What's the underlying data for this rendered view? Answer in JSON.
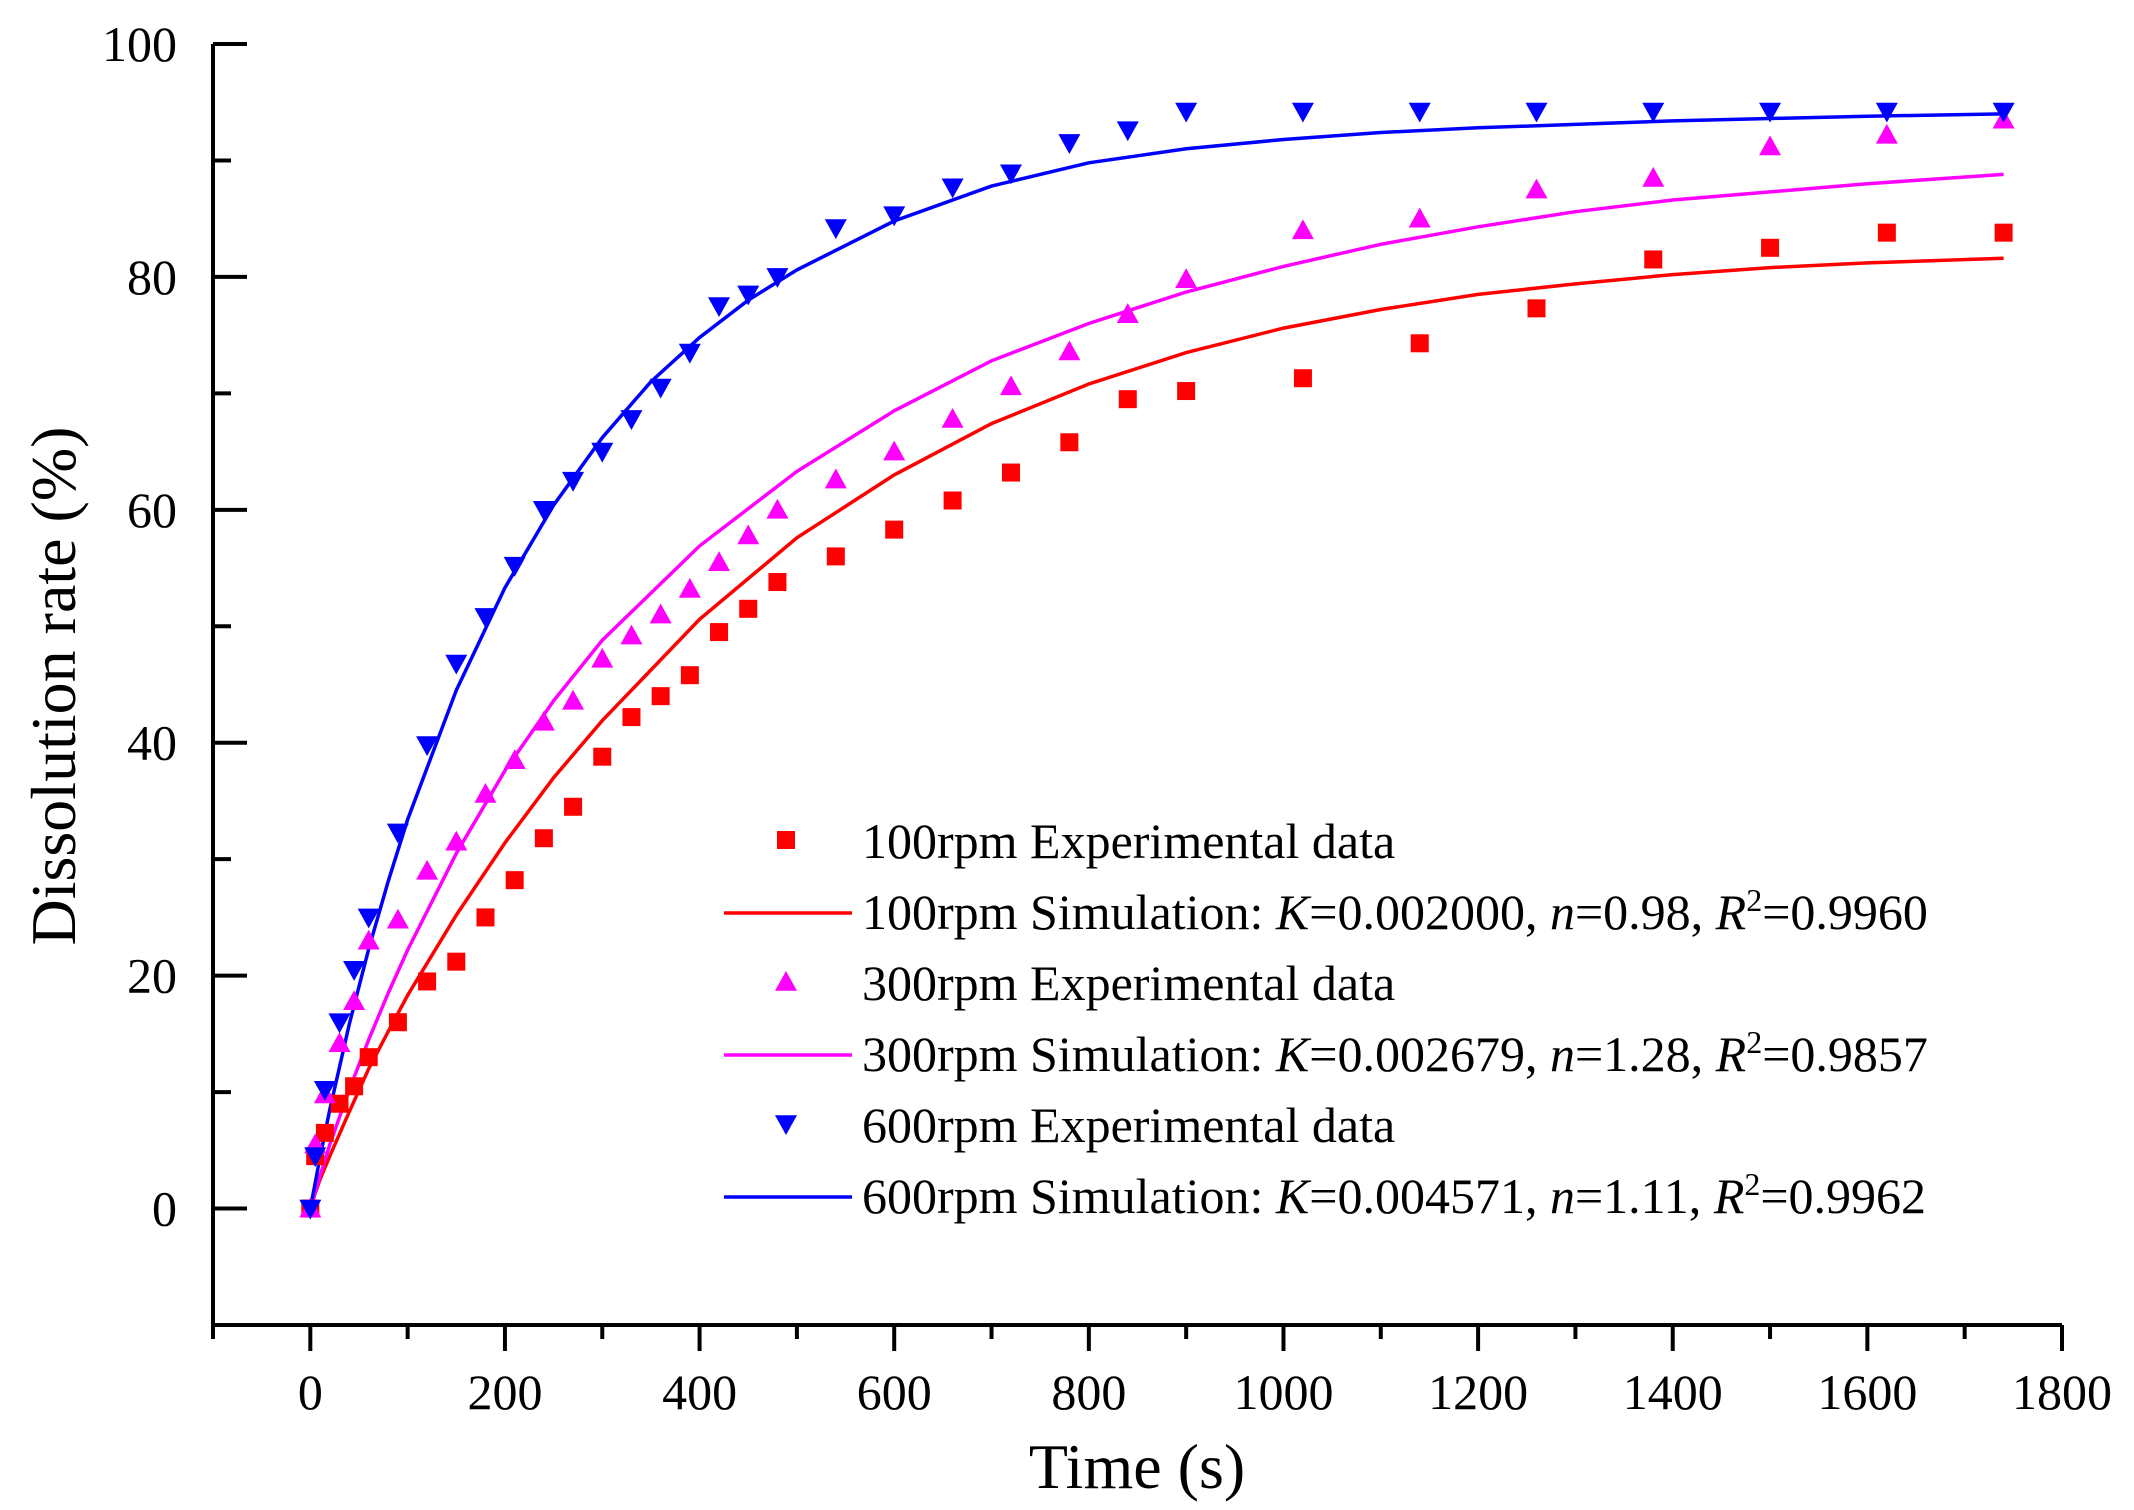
{
  "chart_data": {
    "type": "scatter",
    "xlabel": "Time (s)",
    "ylabel": "Dissolution rate (%)",
    "xlim": [
      -100,
      1800
    ],
    "ylim": [
      -10,
      100
    ],
    "xticks": [
      0,
      200,
      400,
      600,
      800,
      1000,
      1200,
      1400,
      1600,
      1800
    ],
    "yticks": [
      0,
      20,
      40,
      60,
      80,
      100
    ],
    "grid": false,
    "legend_position": "bottom-right",
    "colors": {
      "100rpm": "#ff0000",
      "300rpm": "#ff00ff",
      "600rpm": "#0000ff"
    },
    "series": [
      {
        "name": "100rpm  Experimental data",
        "marker": "square",
        "color": "#ff0000",
        "x": [
          0,
          5,
          15,
          30,
          45,
          60,
          90,
          120,
          150,
          180,
          210,
          240,
          270,
          300,
          330,
          360,
          390,
          420,
          450,
          480,
          540,
          600,
          660,
          720,
          780,
          840,
          900,
          1020,
          1140,
          1260,
          1380,
          1500,
          1620,
          1740
        ],
        "y": [
          0,
          4.5,
          6.5,
          9,
          10.5,
          13,
          16,
          19.5,
          21.2,
          25,
          28.2,
          31.8,
          34.5,
          38.8,
          42.2,
          44,
          45.8,
          49.5,
          51.5,
          53.8,
          56,
          58.3,
          60.8,
          63.2,
          65.8,
          69.5,
          70.2,
          71.3,
          74.3,
          77.3,
          81.5,
          82.5,
          83.8,
          83.8
        ]
      },
      {
        "name": "100rpm Simulation: K=0.002000, n=0.98, R2=0.9960",
        "line": true,
        "color": "#ff0000",
        "x": [
          0,
          5,
          10,
          20,
          40,
          60,
          80,
          100,
          150,
          200,
          250,
          300,
          400,
          500,
          600,
          700,
          800,
          900,
          1000,
          1100,
          1200,
          1300,
          1400,
          1500,
          1600,
          1740
        ],
        "y": [
          0,
          1.3,
          2.5,
          4.5,
          8.3,
          12.0,
          15.2,
          18.3,
          25.2,
          31.4,
          37.0,
          41.9,
          50.6,
          57.6,
          63.0,
          67.4,
          70.8,
          73.5,
          75.6,
          77.2,
          78.5,
          79.4,
          80.2,
          80.8,
          81.2,
          81.6
        ]
      },
      {
        "name": "300rpm  Experimental data",
        "marker": "triangle-up",
        "color": "#ff00ff",
        "x": [
          0,
          5,
          15,
          30,
          45,
          60,
          90,
          120,
          150,
          180,
          210,
          240,
          270,
          300,
          330,
          360,
          390,
          420,
          450,
          480,
          540,
          600,
          660,
          720,
          780,
          840,
          900,
          1020,
          1140,
          1260,
          1380,
          1500,
          1620,
          1740
        ],
        "y": [
          0,
          5.5,
          9.8,
          14.2,
          17.8,
          23,
          24.8,
          29,
          31.5,
          35.6,
          38.5,
          41.8,
          43.6,
          47.2,
          49.2,
          51,
          53.2,
          55.5,
          57.8,
          60,
          62.6,
          65,
          67.8,
          70.6,
          73.6,
          76.8,
          79.8,
          84,
          85,
          87.5,
          88.5,
          91.2,
          92.2,
          93.5
        ]
      },
      {
        "name": "300rpm Simulation: K=0.002679, n=1.28, R2=0.9857",
        "line": true,
        "color": "#ff00ff",
        "x": [
          0,
          5,
          10,
          20,
          40,
          60,
          80,
          100,
          150,
          200,
          250,
          300,
          400,
          500,
          600,
          700,
          800,
          900,
          1000,
          1100,
          1200,
          1300,
          1400,
          1500,
          1600,
          1740
        ],
        "y": [
          0,
          1.4,
          2.8,
          5.5,
          10.2,
          14.5,
          18.5,
          22.2,
          30.5,
          37.6,
          43.6,
          48.8,
          56.9,
          63.3,
          68.5,
          72.8,
          76.0,
          78.7,
          80.9,
          82.8,
          84.3,
          85.6,
          86.6,
          87.3,
          88.0,
          88.8
        ]
      },
      {
        "name": "600rpm  Experimental data",
        "marker": "triangle-down",
        "color": "#0000ff",
        "x": [
          0,
          5,
          15,
          30,
          45,
          60,
          90,
          120,
          150,
          180,
          210,
          240,
          270,
          300,
          330,
          360,
          390,
          420,
          450,
          480,
          540,
          600,
          660,
          720,
          780,
          840,
          900,
          1020,
          1140,
          1260,
          1380,
          1500,
          1620,
          1740
        ],
        "y": [
          0,
          4.5,
          10.2,
          16,
          20.5,
          25,
          32.3,
          39.8,
          46.8,
          50.8,
          55.2,
          60,
          62.5,
          65,
          67.8,
          70.5,
          73.5,
          77.5,
          78.5,
          80,
          84.2,
          85.3,
          87.7,
          88.9,
          91.5,
          92.6,
          94.2,
          94.2,
          94.2,
          94.2,
          94.2,
          94.2,
          94.2,
          94.2
        ]
      },
      {
        "name": "600rpm Simulation: K=0.004571, n=1.11, R2=0.9962",
        "line": true,
        "color": "#0000ff",
        "x": [
          0,
          5,
          10,
          20,
          40,
          60,
          80,
          100,
          150,
          200,
          250,
          300,
          350,
          400,
          450,
          500,
          600,
          700,
          800,
          900,
          1000,
          1100,
          1200,
          1300,
          1400,
          1500,
          1600,
          1740
        ],
        "y": [
          0,
          2.2,
          4.4,
          8.5,
          15.8,
          22.3,
          28.1,
          33.4,
          44.5,
          53.3,
          60.4,
          66.2,
          71.0,
          74.8,
          78.0,
          80.6,
          84.8,
          87.8,
          89.8,
          91.0,
          91.8,
          92.4,
          92.8,
          93.1,
          93.4,
          93.6,
          93.8,
          94.0
        ]
      }
    ],
    "legend": [
      {
        "kind": "marker",
        "marker": "square",
        "color": "#ff0000",
        "text": "100rpm  Experimental data"
      },
      {
        "kind": "line",
        "color": "#ff0000",
        "prefix": "100rpm Simulation: ",
        "K": "0.002000",
        "n": "0.98",
        "R2": "0.9960"
      },
      {
        "kind": "marker",
        "marker": "triangle-up",
        "color": "#ff00ff",
        "text": "300rpm  Experimental data"
      },
      {
        "kind": "line",
        "color": "#ff00ff",
        "prefix": "300rpm Simulation: ",
        "K": "0.002679",
        "n": "1.28",
        "R2": "0.9857"
      },
      {
        "kind": "marker",
        "marker": "triangle-down",
        "color": "#0000ff",
        "text": "600rpm  Experimental data"
      },
      {
        "kind": "line",
        "color": "#0000ff",
        "prefix": "600rpm Simulation: ",
        "K": "0.004571",
        "n": "1.11",
        "R2": "0.9962"
      }
    ]
  }
}
